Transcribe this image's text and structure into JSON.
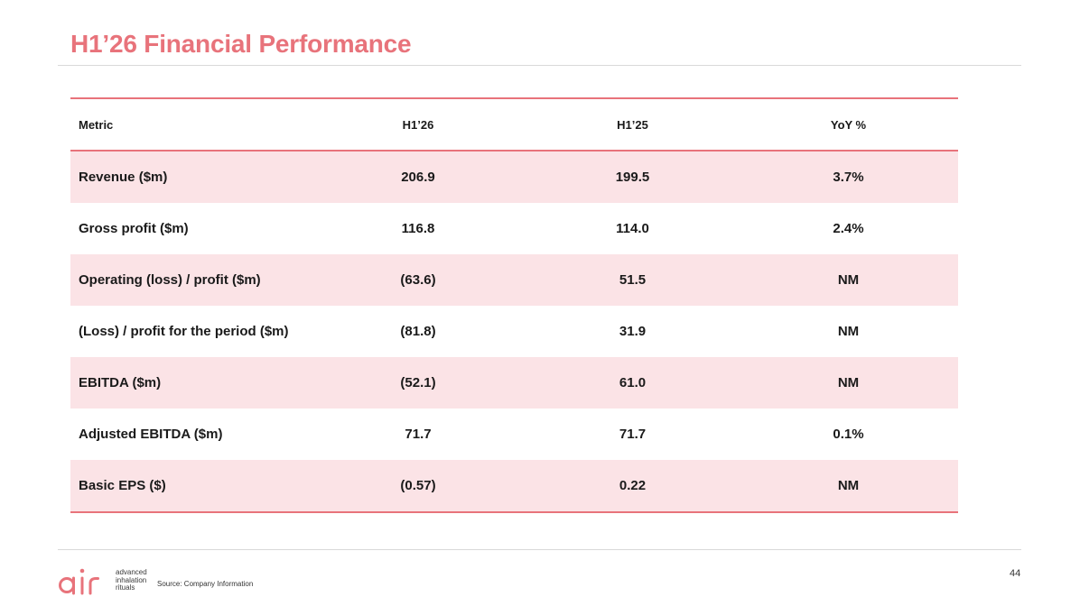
{
  "slide": {
    "title": "H1’26 Financial Performance",
    "source": "Source: Company Information",
    "page_number": "44"
  },
  "logo": {
    "tagline": [
      "advanced",
      "inhalation",
      "rituals"
    ]
  },
  "table": {
    "headers": [
      "Metric",
      "H1’26",
      "H1’25",
      "YoY %"
    ],
    "rows": [
      {
        "metric": "Revenue ($m)",
        "h1_26": "206.9",
        "h1_25": "199.5",
        "yoy": "3.7%"
      },
      {
        "metric": "Gross profit ($m)",
        "h1_26": "116.8",
        "h1_25": "114.0",
        "yoy": "2.4%"
      },
      {
        "metric": "Operating (loss) / profit ($m)",
        "h1_26": "(63.6)",
        "h1_25": "51.5",
        "yoy": "NM"
      },
      {
        "metric": "(Loss) / profit for the period ($m)",
        "h1_26": "(81.8)",
        "h1_25": "31.9",
        "yoy": "NM"
      },
      {
        "metric": "EBITDA ($m)",
        "h1_26": "(52.1)",
        "h1_25": "61.0",
        "yoy": "NM"
      },
      {
        "metric": "Adjusted EBITDA ($m)",
        "h1_26": "71.7",
        "h1_25": "71.7",
        "yoy": "0.1%"
      },
      {
        "metric": "Basic EPS ($)",
        "h1_26": "(0.57)",
        "h1_25": "0.22",
        "yoy": "NM"
      }
    ]
  },
  "colors": {
    "accent": "#e8737b",
    "row_shade": "#fbe3e6",
    "rule": "#d9d9d9"
  }
}
